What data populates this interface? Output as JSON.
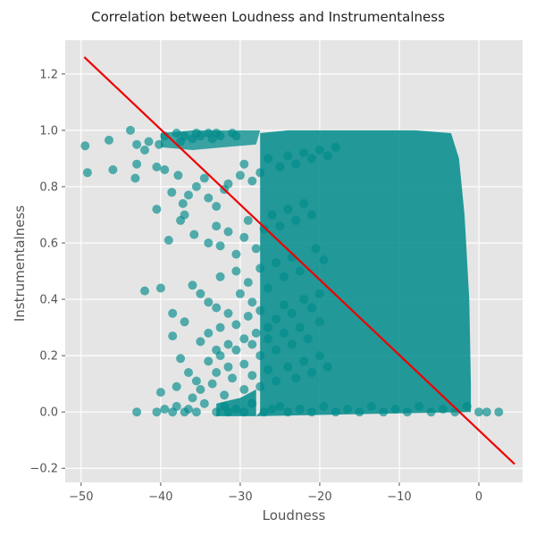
{
  "chart_data": {
    "type": "scatter",
    "title": "Correlation between Loudness and Instrumentalness",
    "xlabel": "Loudness",
    "ylabel": "Instrumentalness",
    "xlim": [
      -52,
      5.5
    ],
    "ylim": [
      -0.25,
      1.32
    ],
    "xticks": [
      -50,
      -40,
      -30,
      -20,
      -10,
      0
    ],
    "xtick_labels": [
      "−50",
      "−40",
      "−30",
      "−20",
      "−10",
      "0"
    ],
    "yticks": [
      -0.2,
      0.0,
      0.2,
      0.4,
      0.6,
      0.8,
      1.0,
      1.2
    ],
    "ytick_labels": [
      "−0.2",
      "0.0",
      "0.2",
      "0.4",
      "0.6",
      "0.8",
      "1.0",
      "1.2"
    ],
    "grid": true,
    "background_color": "#e5e5e5",
    "point_color": "#008b8b",
    "line_color": "#ee0000",
    "regression_line": {
      "x": [
        -49.6,
        4.5
      ],
      "y": [
        1.26,
        -0.185
      ]
    },
    "series": [
      {
        "x": [
          -49.5,
          -49.2,
          -46.5,
          -46.0,
          -43.8,
          -43.0,
          -43.2,
          -42.0,
          -41.5,
          -40.5,
          -40.2,
          -39.5,
          -38.0,
          -37.5,
          -37.0,
          -36.0,
          -35.5,
          -35.0,
          -34.0,
          -33.5,
          -33.0,
          -32.5,
          -31.0,
          -30.5,
          -43.0,
          -40.5,
          -39.5,
          -38.6,
          -37.8,
          -37.2,
          -36.5,
          -35.5,
          -34.5,
          -34.0,
          -33.0,
          -32.0,
          -31.5,
          -30.0,
          -29.5,
          -28.5,
          -27.5,
          -26.5,
          -25.0,
          -24.0,
          -23.0,
          -22.0,
          -21.0,
          -20.0,
          -19.0,
          -18.0,
          -39.0,
          -37.5,
          -37.0,
          -35.8,
          -34.0,
          -33.0,
          -32.5,
          -31.5,
          -30.5,
          -29.5,
          -29.0,
          -28.0,
          -27.0,
          -26.0,
          -25.0,
          -24.0,
          -23.0,
          -22.0,
          -21.0,
          -40.0,
          -38.5,
          -36.0,
          -35.0,
          -34.0,
          -33.0,
          -32.5,
          -31.5,
          -30.5,
          -30.0,
          -29.0,
          -28.5,
          -27.5,
          -26.5,
          -25.5,
          -24.5,
          -23.5,
          -22.5,
          -20.5,
          -19.5,
          -42.0,
          -38.5,
          -37.0,
          -35.0,
          -34.0,
          -33.0,
          -32.5,
          -31.5,
          -30.5,
          -29.5,
          -29.0,
          -28.0,
          -27.5,
          -26.5,
          -25.5,
          -24.5,
          -23.5,
          -22.0,
          -21.0,
          -20.0,
          -37.5,
          -36.5,
          -35.5,
          -34.0,
          -33.0,
          -32.5,
          -31.5,
          -30.5,
          -29.5,
          -28.5,
          -27.5,
          -26.5,
          -25.5,
          -24.5,
          -23.5,
          -22.5,
          -21.5,
          -20.0,
          -40.0,
          -38.0,
          -36.0,
          -35.0,
          -33.5,
          -32.0,
          -31.0,
          -29.5,
          -28.5,
          -27.5,
          -26.5,
          -25.5,
          -24.0,
          -23.0,
          -22.0,
          -21.0,
          -20.0,
          -19.0,
          -43.0,
          -40.5,
          -39.5,
          -38.5,
          -38.0,
          -37.0,
          -36.5,
          -35.5,
          -34.5,
          -33.0,
          -32.0,
          -31.5,
          -30.5,
          -29.5,
          -28.5,
          -27.0,
          -26.0,
          -25.0,
          -24.0,
          -22.5,
          -21.0,
          -19.5,
          -18.0,
          -16.5,
          -15.0,
          -13.5,
          -12.0,
          -10.5,
          -9.0,
          -7.5,
          -6.0,
          -4.5,
          -3.0,
          -1.5,
          0.0,
          1.0,
          2.5
        ],
        "y": [
          0.945,
          0.85,
          0.965,
          0.86,
          1.0,
          0.95,
          0.83,
          0.93,
          0.96,
          0.87,
          0.95,
          0.98,
          0.99,
          0.96,
          0.98,
          0.97,
          0.99,
          0.98,
          0.99,
          0.97,
          0.99,
          0.98,
          0.99,
          0.98,
          0.88,
          0.72,
          0.86,
          0.78,
          0.84,
          0.74,
          0.77,
          0.8,
          0.83,
          0.76,
          0.73,
          0.79,
          0.81,
          0.84,
          0.88,
          0.82,
          0.85,
          0.9,
          0.87,
          0.91,
          0.88,
          0.92,
          0.9,
          0.93,
          0.91,
          0.94,
          0.61,
          0.68,
          0.7,
          0.63,
          0.6,
          0.66,
          0.59,
          0.64,
          0.56,
          0.62,
          0.68,
          0.58,
          0.65,
          0.7,
          0.66,
          0.72,
          0.68,
          0.74,
          0.7,
          0.44,
          0.35,
          0.45,
          0.42,
          0.39,
          0.37,
          0.48,
          0.35,
          0.5,
          0.42,
          0.46,
          0.39,
          0.51,
          0.44,
          0.53,
          0.48,
          0.55,
          0.5,
          0.58,
          0.54,
          0.43,
          0.27,
          0.32,
          0.25,
          0.28,
          0.22,
          0.3,
          0.24,
          0.31,
          0.26,
          0.34,
          0.28,
          0.36,
          0.3,
          0.33,
          0.38,
          0.35,
          0.4,
          0.37,
          0.42,
          0.19,
          0.14,
          0.11,
          0.18,
          0.14,
          0.2,
          0.16,
          0.22,
          0.17,
          0.24,
          0.2,
          0.26,
          0.22,
          0.28,
          0.24,
          0.3,
          0.26,
          0.32,
          0.07,
          0.09,
          0.05,
          0.08,
          0.1,
          0.06,
          0.12,
          0.08,
          0.13,
          0.09,
          0.15,
          0.11,
          0.16,
          0.12,
          0.18,
          0.14,
          0.2,
          0.16,
          0.0,
          0.0,
          0.01,
          0.0,
          0.02,
          0.0,
          0.01,
          0.0,
          0.03,
          0.0,
          0.02,
          0.0,
          0.01,
          0.0,
          0.03,
          0.0,
          0.01,
          0.02,
          0.0,
          0.01,
          0.0,
          0.02,
          0.0,
          0.01,
          0.0,
          0.02,
          0.0,
          0.01,
          0.0,
          0.02,
          0.0,
          0.01,
          0.0,
          0.02,
          0.0,
          0.0,
          0.0
        ]
      }
    ]
  }
}
